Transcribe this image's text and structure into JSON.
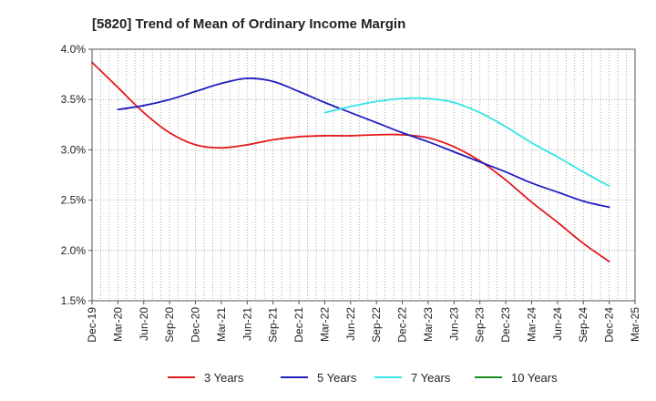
{
  "chart_data": {
    "type": "line",
    "title": "[5820]  Trend of Mean of Ordinary Income Margin",
    "xlabel": "",
    "ylabel": "",
    "x": [
      "Dec-19",
      "Mar-20",
      "Jun-20",
      "Sep-20",
      "Dec-20",
      "Mar-21",
      "Jun-21",
      "Sep-21",
      "Dec-21",
      "Mar-22",
      "Jun-22",
      "Sep-22",
      "Dec-22",
      "Mar-23",
      "Jun-23",
      "Sep-23",
      "Dec-23",
      "Mar-24",
      "Jun-24",
      "Sep-24",
      "Dec-24",
      "Mar-25"
    ],
    "ylim": [
      1.5,
      4.0
    ],
    "yticks": [
      "1.5%",
      "2.0%",
      "2.5%",
      "3.0%",
      "3.5%",
      "4.0%"
    ],
    "grid": true,
    "legend_position": "bottom",
    "series": [
      {
        "name": "3 Years",
        "color": "#e31a1c",
        "values": [
          3.87,
          3.62,
          3.37,
          3.17,
          3.05,
          3.02,
          3.05,
          3.1,
          3.13,
          3.14,
          3.14,
          3.15,
          3.15,
          3.12,
          3.03,
          2.89,
          2.7,
          2.48,
          2.28,
          2.07,
          1.89,
          null
        ]
      },
      {
        "name": "5 Years",
        "color": "#1f1fbf",
        "values": [
          null,
          3.4,
          3.44,
          3.5,
          3.58,
          3.66,
          3.71,
          3.68,
          3.58,
          3.47,
          3.37,
          3.27,
          3.17,
          3.08,
          2.98,
          2.88,
          2.78,
          2.67,
          2.58,
          2.49,
          2.43,
          null
        ]
      },
      {
        "name": "7 Years",
        "color": "#33e5e5",
        "values": [
          null,
          null,
          null,
          null,
          null,
          null,
          null,
          null,
          null,
          3.37,
          3.43,
          3.48,
          3.51,
          3.51,
          3.47,
          3.37,
          3.23,
          3.07,
          2.93,
          2.78,
          2.64,
          null
        ]
      },
      {
        "name": "10 Years",
        "color": "#1a8a1a",
        "values": [
          null,
          null,
          null,
          null,
          null,
          null,
          null,
          null,
          null,
          null,
          null,
          null,
          null,
          null,
          null,
          null,
          null,
          null,
          null,
          null,
          null,
          null
        ]
      }
    ]
  }
}
